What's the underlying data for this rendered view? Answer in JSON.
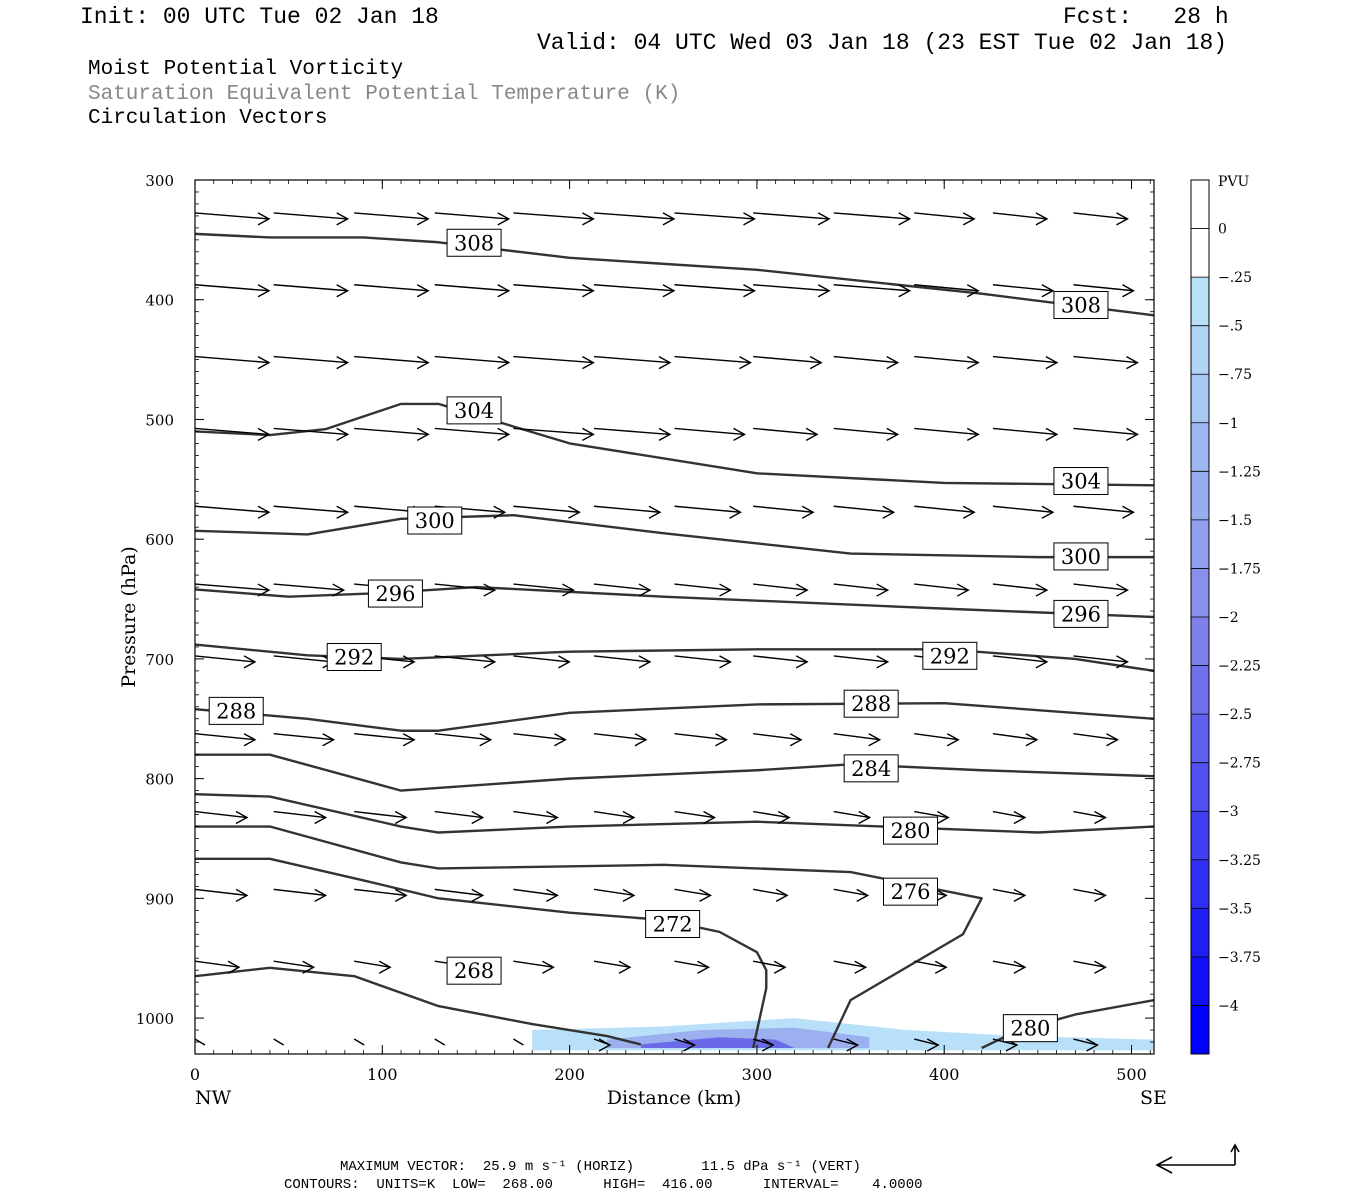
{
  "header": {
    "init": "Init: 00 UTC Tue 02 Jan 18",
    "fcst": "Fcst:   28 h",
    "valid": "Valid: 04 UTC Wed 03 Jan 18 (23 EST Tue 02 Jan 18)"
  },
  "titles": {
    "line1": "Moist Potential Vorticity",
    "line2": "Saturation Equivalent Potential Temperature (K)",
    "line3": "Circulation Vectors",
    "line2_color": "#888888"
  },
  "chart_data": {
    "type": "cross-section",
    "xlabel": "Distance (km)",
    "ylabel": "Pressure (hPa)",
    "xlim": [
      0,
      512
    ],
    "ylim": [
      1030,
      300
    ],
    "x_ticks": [
      0,
      100,
      200,
      300,
      400,
      500
    ],
    "y_ticks": [
      300,
      400,
      500,
      600,
      700,
      800,
      900,
      1000
    ],
    "x_end_labels": {
      "left": "NW",
      "right": "SE"
    },
    "colorbar": {
      "unit": "PVU",
      "labels": [
        "0",
        "-.25",
        "-.5",
        "-.75",
        "-1",
        "-1.25",
        "-1.5",
        "-1.75",
        "-2",
        "-2.25",
        "-2.5",
        "-2.75",
        "-3",
        "-3.25",
        "-3.5",
        "-3.75",
        "-4"
      ],
      "colors": [
        "#ffffff",
        "#ffffff",
        "#b8e0f8",
        "#b0d4f6",
        "#a8c8f4",
        "#a0b8f2",
        "#98acf0",
        "#90a0ee",
        "#8890ec",
        "#8080ea",
        "#7070ec",
        "#6060ee",
        "#5050f0",
        "#4040f2",
        "#3030f4",
        "#2020f6",
        "#1010f8",
        "#0000ff"
      ]
    },
    "theta_es_contours": [
      {
        "level": 308,
        "points": [
          [
            0,
            345
          ],
          [
            40,
            348
          ],
          [
            90,
            348
          ],
          [
            130,
            352
          ],
          [
            200,
            365
          ],
          [
            300,
            375
          ],
          [
            420,
            395
          ],
          [
            512,
            413
          ]
        ]
      },
      {
        "level": 304,
        "points": [
          [
            0,
            510
          ],
          [
            40,
            513
          ],
          [
            70,
            508
          ],
          [
            110,
            487
          ],
          [
            130,
            487
          ],
          [
            200,
            520
          ],
          [
            300,
            545
          ],
          [
            400,
            553
          ],
          [
            512,
            555
          ]
        ]
      },
      {
        "level": 300,
        "points": [
          [
            0,
            593
          ],
          [
            60,
            596
          ],
          [
            110,
            583
          ],
          [
            170,
            580
          ],
          [
            250,
            595
          ],
          [
            350,
            612
          ],
          [
            450,
            615
          ],
          [
            512,
            615
          ]
        ]
      },
      {
        "level": 296,
        "points": [
          [
            0,
            642
          ],
          [
            50,
            648
          ],
          [
            100,
            645
          ],
          [
            150,
            640
          ],
          [
            250,
            648
          ],
          [
            400,
            658
          ],
          [
            512,
            665
          ]
        ]
      },
      {
        "level": 292,
        "points": [
          [
            0,
            688
          ],
          [
            60,
            697
          ],
          [
            110,
            700
          ],
          [
            200,
            694
          ],
          [
            300,
            692
          ],
          [
            400,
            692
          ],
          [
            470,
            700
          ],
          [
            512,
            710
          ]
        ]
      },
      {
        "level": 288,
        "points": [
          [
            0,
            742
          ],
          [
            60,
            750
          ],
          [
            110,
            760
          ],
          [
            130,
            760
          ],
          [
            200,
            745
          ],
          [
            300,
            738
          ],
          [
            400,
            737
          ],
          [
            512,
            750
          ]
        ]
      },
      {
        "level": 284,
        "points": [
          [
            0,
            780
          ],
          [
            40,
            780
          ],
          [
            110,
            810
          ],
          [
            200,
            800
          ],
          [
            300,
            793
          ],
          [
            350,
            788
          ],
          [
            420,
            793
          ],
          [
            512,
            798
          ]
        ]
      },
      {
        "level": 280,
        "points": [
          [
            0,
            813
          ],
          [
            40,
            815
          ],
          [
            110,
            840
          ],
          [
            130,
            845
          ],
          [
            200,
            840
          ],
          [
            300,
            836
          ],
          [
            400,
            842
          ],
          [
            450,
            845
          ],
          [
            512,
            840
          ]
        ]
      },
      {
        "level": 280,
        "points": [
          [
            420,
            1025
          ],
          [
            440,
            1010
          ],
          [
            470,
            997
          ],
          [
            512,
            985
          ]
        ]
      },
      {
        "level": 276,
        "points": [
          [
            0,
            840
          ],
          [
            40,
            840
          ],
          [
            110,
            870
          ],
          [
            130,
            875
          ],
          [
            250,
            872
          ],
          [
            350,
            878
          ],
          [
            420,
            900
          ],
          [
            410,
            930
          ],
          [
            350,
            985
          ],
          [
            338,
            1025
          ]
        ]
      },
      {
        "level": 272,
        "points": [
          [
            0,
            867
          ],
          [
            40,
            867
          ],
          [
            90,
            885
          ],
          [
            130,
            900
          ],
          [
            200,
            912
          ],
          [
            250,
            918
          ],
          [
            280,
            928
          ],
          [
            300,
            945
          ],
          [
            305,
            960
          ],
          [
            305,
            975
          ],
          [
            298,
            1025
          ]
        ]
      },
      {
        "level": 268,
        "points": [
          [
            0,
            965
          ],
          [
            40,
            958
          ],
          [
            85,
            965
          ],
          [
            130,
            990
          ],
          [
            180,
            1005
          ],
          [
            220,
            1015
          ],
          [
            238,
            1022
          ]
        ]
      }
    ],
    "contour_labels": [
      {
        "text": "308",
        "x": 149,
        "p": 352
      },
      {
        "text": "308",
        "x": 473,
        "p": 404
      },
      {
        "text": "304",
        "x": 149,
        "p": 492
      },
      {
        "text": "304",
        "x": 473,
        "p": 551
      },
      {
        "text": "300",
        "x": 128,
        "p": 584
      },
      {
        "text": "300",
        "x": 473,
        "p": 614
      },
      {
        "text": "296",
        "x": 107,
        "p": 645
      },
      {
        "text": "296",
        "x": 473,
        "p": 662
      },
      {
        "text": "292",
        "x": 85,
        "p": 698
      },
      {
        "text": "292",
        "x": 403,
        "p": 697
      },
      {
        "text": "288",
        "x": 22,
        "p": 743
      },
      {
        "text": "288",
        "x": 361,
        "p": 737
      },
      {
        "text": "284",
        "x": 361,
        "p": 791
      },
      {
        "text": "280",
        "x": 382,
        "p": 843
      },
      {
        "text": "280",
        "x": 446,
        "p": 1008
      },
      {
        "text": "276",
        "x": 382,
        "p": 894
      },
      {
        "text": "272",
        "x": 255,
        "p": 921
      },
      {
        "text": "268",
        "x": 149,
        "p": 960
      }
    ],
    "pv_negative_region": [
      {
        "range": [
          -0.5,
          -0.25
        ],
        "points": [
          [
            180,
            1010
          ],
          [
            250,
            1007
          ],
          [
            320,
            1000
          ],
          [
            380,
            1010
          ],
          [
            440,
            1015
          ],
          [
            512,
            1018
          ],
          [
            512,
            1027
          ],
          [
            180,
            1027
          ]
        ]
      },
      {
        "range": [
          -1.0,
          -0.5
        ],
        "points": [
          [
            220,
            1018
          ],
          [
            270,
            1010
          ],
          [
            320,
            1008
          ],
          [
            360,
            1016
          ],
          [
            360,
            1025
          ],
          [
            220,
            1025
          ]
        ]
      },
      {
        "range": [
          -2.0,
          -1.0
        ],
        "points": [
          [
            238,
            1022
          ],
          [
            280,
            1016
          ],
          [
            310,
            1018
          ],
          [
            320,
            1025
          ],
          [
            238,
            1025
          ]
        ]
      }
    ],
    "vectors_cols_km": [
      0,
      42,
      85,
      128,
      170,
      213,
      256,
      298,
      341,
      384,
      426,
      469
    ],
    "vectors": [
      {
        "p": 330,
        "u": [
          0.37,
          0.37,
          0.37,
          0.37,
          0.4,
          0.4,
          0.4,
          0.38,
          0.38,
          0.3,
          0.27,
          0.27
        ]
      },
      {
        "p": 390,
        "u": [
          0.37,
          0.37,
          0.37,
          0.37,
          0.4,
          0.4,
          0.4,
          0.38,
          0.38,
          0.32,
          0.3,
          0.3
        ]
      },
      {
        "p": 450,
        "u": [
          0.37,
          0.37,
          0.37,
          0.37,
          0.4,
          0.38,
          0.38,
          0.34,
          0.32,
          0.32,
          0.32,
          0.32
        ]
      },
      {
        "p": 510,
        "u": [
          0.37,
          0.37,
          0.37,
          0.37,
          0.4,
          0.38,
          0.35,
          0.32,
          0.32,
          0.32,
          0.32,
          0.32
        ]
      },
      {
        "p": 575,
        "u": [
          0.37,
          0.37,
          0.35,
          0.35,
          0.33,
          0.33,
          0.33,
          0.3,
          0.3,
          0.3,
          0.3,
          0.3
        ]
      },
      {
        "p": 640,
        "u": [
          0.37,
          0.35,
          0.34,
          0.3,
          0.3,
          0.28,
          0.28,
          0.27,
          0.27,
          0.27,
          0.27,
          0.27
        ]
      },
      {
        "p": 700,
        "u": [
          0.3,
          0.3,
          0.3,
          0.3,
          0.28,
          0.28,
          0.28,
          0.27,
          0.27,
          0.27,
          0.27,
          0.27
        ]
      },
      {
        "p": 765,
        "u": [
          0.3,
          0.3,
          0.3,
          0.28,
          0.26,
          0.26,
          0.26,
          0.24,
          0.23,
          0.22,
          0.22,
          0.22
        ]
      },
      {
        "p": 830,
        "u": [
          0.26,
          0.26,
          0.26,
          0.24,
          0.22,
          0.2,
          0.2,
          0.18,
          0.18,
          0.17,
          0.16,
          0.16
        ]
      },
      {
        "p": 895,
        "u": [
          0.26,
          0.26,
          0.26,
          0.24,
          0.22,
          0.2,
          0.18,
          0.17,
          0.17,
          0.16,
          0.16,
          0.16
        ]
      },
      {
        "p": 955,
        "u": [
          0.22,
          0.2,
          0.18,
          0.2,
          0.2,
          0.18,
          0.17,
          0.16,
          0.16,
          0.16,
          0.16,
          0.16
        ]
      },
      {
        "p": 1020,
        "u": [
          0.05,
          0.05,
          0.05,
          0.05,
          0.05,
          0.08,
          0.1,
          0.1,
          0.12,
          0.12,
          0.12,
          0.12
        ]
      }
    ]
  },
  "footer": {
    "max_vector": "MAXIMUM VECTOR:  25.9 m s⁻¹ (HORIZ)        11.5 dPa s⁻¹ (VERT)",
    "contours": "CONTOURS:  UNITS=K  LOW=  268.00      HIGH=  416.00      INTERVAL=    4.0000"
  }
}
